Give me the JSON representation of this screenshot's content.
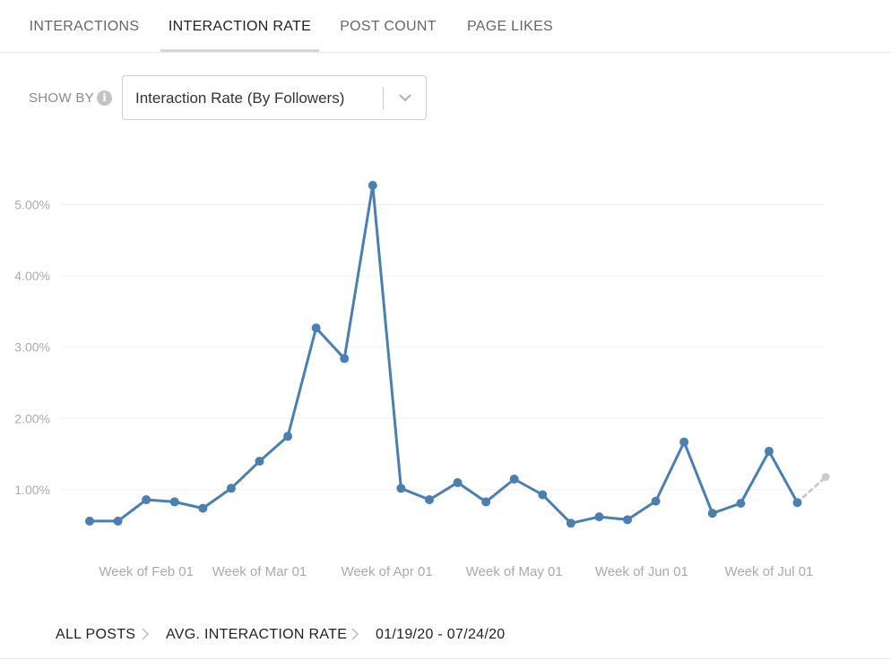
{
  "tabs": [
    {
      "label": "INTERACTIONS",
      "active": false
    },
    {
      "label": "INTERACTION RATE",
      "active": true
    },
    {
      "label": "POST COUNT",
      "active": false
    },
    {
      "label": "PAGE LIKES",
      "active": false
    }
  ],
  "filter": {
    "label": "SHOW BY",
    "info_icon": "info-icon",
    "selected": "Interaction Rate (By Followers)",
    "dropdown_icon": "chevron-down-icon"
  },
  "chart_data": {
    "type": "line",
    "ytick_labels": [
      "1.00%",
      "2.00%",
      "3.00%",
      "4.00%",
      "5.00%"
    ],
    "yticks": [
      1,
      2,
      3,
      4,
      5
    ],
    "ylim": [
      0,
      5.5
    ],
    "xtick_labels": [
      "Week of Feb 01",
      "Week of Mar 01",
      "Week of Apr 01",
      "Week of May 01",
      "Week of Jun 01",
      "Week of Jul 01"
    ],
    "xtick_positions": [
      2,
      6,
      10.5,
      15,
      19.5,
      24
    ],
    "series": [
      {
        "color": "#4a7fb0",
        "x": [
          0,
          1,
          2,
          3,
          4,
          5,
          6,
          7,
          8,
          9,
          10,
          11,
          12,
          13,
          14,
          15,
          16,
          17,
          18,
          19,
          20,
          21,
          22,
          23,
          24,
          25
        ],
        "values": [
          0.56,
          0.56,
          0.86,
          0.83,
          0.74,
          1.02,
          1.4,
          1.75,
          3.27,
          2.84,
          5.27,
          1.02,
          0.86,
          1.1,
          0.83,
          1.15,
          0.93,
          0.53,
          0.62,
          0.58,
          0.84,
          1.67,
          0.67,
          0.81,
          1.54,
          0.82
        ]
      },
      {
        "color": "#cccccc",
        "dashed": true,
        "x": [
          25,
          26
        ],
        "values": [
          0.82,
          1.18
        ]
      }
    ],
    "grid": true
  },
  "breadcrumb": {
    "items": [
      "ALL POSTS",
      "AVG. INTERACTION RATE",
      "01/19/20 - 07/24/20"
    ],
    "separator_icon": "chevron-right-icon"
  }
}
